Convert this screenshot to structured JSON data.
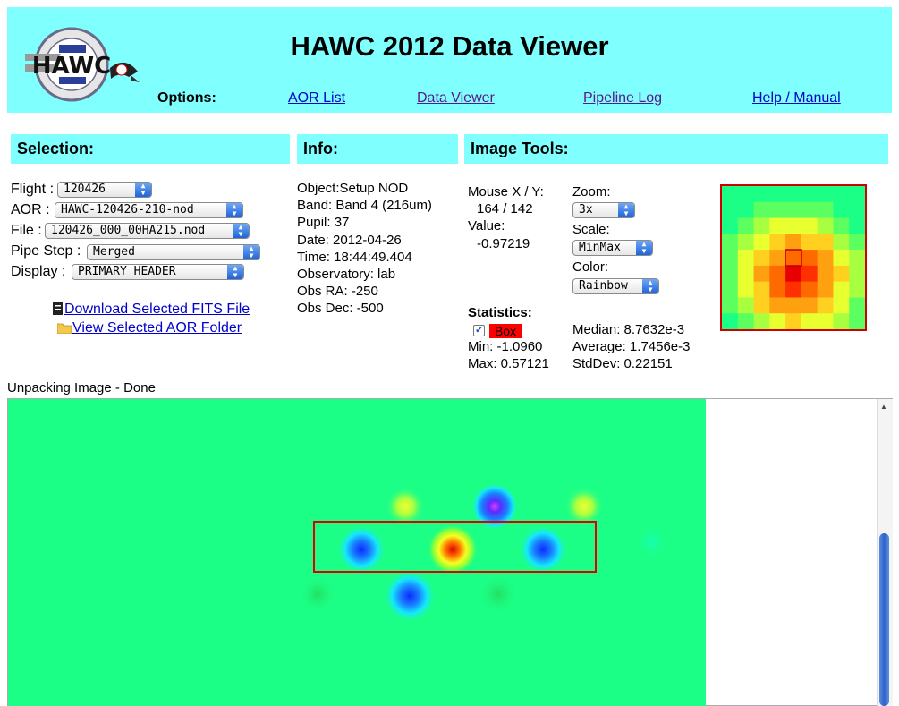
{
  "header": {
    "title": "HAWC 2012 Data Viewer",
    "logo_text": "HAWC",
    "options_label": "Options:",
    "nav": {
      "aor_list": "AOR List",
      "data_viewer": "Data Viewer",
      "pipeline_log": "Pipeline Log",
      "help": "Help / Manual"
    }
  },
  "sections": {
    "selection": "Selection:",
    "info": "Info:",
    "image_tools": "Image Tools:"
  },
  "selection": {
    "flight_label": "Flight :",
    "flight_value": "120426",
    "aor_label": "AOR :",
    "aor_value": "HAWC-120426-210-nod",
    "file_label": "File :",
    "file_value": "120426_000_00HA215.nod",
    "pipestep_label": "Pipe Step :",
    "pipestep_value": "Merged",
    "display_label": "Display :",
    "display_value": "PRIMARY HEADER",
    "download_link": "Download Selected FITS File",
    "view_folder_link": "View Selected AOR Folder"
  },
  "info": {
    "object": "Object:Setup NOD",
    "band": "Band: Band 4 (216um)",
    "pupil": "Pupil: 37",
    "date": "Date: 2012-04-26",
    "time": "Time: 18:44:49.404",
    "observatory": "Observatory: lab",
    "obs_ra": "Obs RA: -250",
    "obs_dec": "Obs Dec: -500"
  },
  "tools": {
    "mouse_label": "Mouse X / Y:",
    "mouse_value": "164 / 142",
    "value_label": "Value:",
    "value_value": "-0.97219",
    "zoom_label": "Zoom:",
    "zoom_value": "3x",
    "scale_label": "Scale:",
    "scale_value": "MinMax",
    "color_label": "Color:",
    "color_value": "Rainbow",
    "statistics_label": "Statistics:",
    "box_label": "Box",
    "min": "Min: -1.0960",
    "max": "Max: 0.57121",
    "median": "Median: 8.7632e-3",
    "average": "Average: 1.7456e-3",
    "stddev": "StdDev: 0.22151"
  },
  "status": "Unpacking Image - Done",
  "colors": {
    "header_bg": "#80ffff",
    "image_bg": "#1cff86",
    "box_red": "#ff0000"
  }
}
